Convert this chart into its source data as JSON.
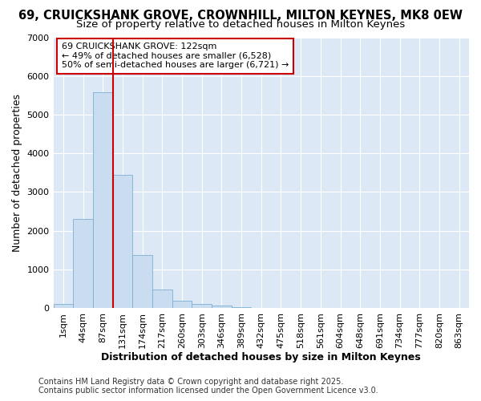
{
  "title_line1": "69, CRUICKSHANK GROVE, CROWNHILL, MILTON KEYNES, MK8 0EW",
  "title_line2": "Size of property relative to detached houses in Milton Keynes",
  "xlabel": "Distribution of detached houses by size in Milton Keynes",
  "ylabel": "Number of detached properties",
  "categories": [
    "1sqm",
    "44sqm",
    "87sqm",
    "131sqm",
    "174sqm",
    "217sqm",
    "260sqm",
    "303sqm",
    "346sqm",
    "389sqm",
    "432sqm",
    "475sqm",
    "518sqm",
    "561sqm",
    "604sqm",
    "648sqm",
    "691sqm",
    "734sqm",
    "777sqm",
    "820sqm",
    "863sqm"
  ],
  "values": [
    100,
    2300,
    5580,
    3450,
    1360,
    470,
    190,
    100,
    60,
    10,
    0,
    0,
    0,
    0,
    0,
    0,
    0,
    0,
    0,
    0,
    0
  ],
  "bar_color": "#c9dcf0",
  "bar_edge_color": "#7bafd4",
  "vline_color": "#cc0000",
  "annotation_text": "69 CRUICKSHANK GROVE: 122sqm\n← 49% of detached houses are smaller (6,528)\n50% of semi-detached houses are larger (6,721) →",
  "annotation_box_color": "#ffffff",
  "annotation_box_edge": "#cc0000",
  "ylim": [
    0,
    7000
  ],
  "yticks": [
    0,
    1000,
    2000,
    3000,
    4000,
    5000,
    6000,
    7000
  ],
  "plot_bg_color": "#dce8f5",
  "fig_bg_color": "#ffffff",
  "grid_color": "#ffffff",
  "footer_line1": "Contains HM Land Registry data © Crown copyright and database right 2025.",
  "footer_line2": "Contains public sector information licensed under the Open Government Licence v3.0.",
  "title_fontsize": 10.5,
  "subtitle_fontsize": 9.5,
  "axis_label_fontsize": 9,
  "tick_fontsize": 8,
  "annotation_fontsize": 8,
  "footer_fontsize": 7
}
